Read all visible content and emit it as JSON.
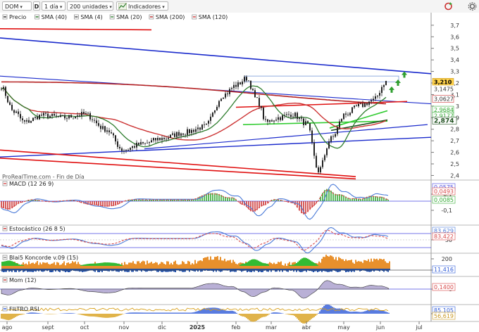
{
  "toolbar": {
    "ticker": "DOM",
    "timeframe": "1 día",
    "units": "200 unidades",
    "indicators": "Indicadores"
  },
  "legend_labels": [
    "Precio",
    "SMA (40)",
    "SMA (4)",
    "SMA (20)",
    "SMA (200)",
    "SMA (120)"
  ],
  "colors": {
    "price": "#222222",
    "sma40": "#1a6b1a",
    "sma4": "#333333",
    "sma20": "#2e7d2e",
    "sma200": "#b52222",
    "sma120": "#cc3333",
    "channel_blue": "#1a2acc",
    "red_line": "#e01010",
    "green_line": "#33cc33",
    "signal_arrow": "#2e9e2e",
    "bar_pos": "#33aa33",
    "bar_neg": "#cc3333"
  },
  "watermark": "ProRealTime.com - Fin de Día",
  "x_axis_labels": [
    "ago",
    "sept",
    "oct",
    "nov",
    "dic",
    "2025",
    "feb",
    "mar",
    "abr",
    "may",
    "jun",
    "jul"
  ],
  "chart_data": [
    {
      "type": "line",
      "title": "Precio",
      "yticks": [
        "3,7",
        "3,6",
        "3,5",
        "3,4",
        "3,3",
        "3,2",
        "3,1",
        "3",
        "2,9",
        "2,8",
        "2,7",
        "2,6",
        "2,5",
        "2,4"
      ],
      "ylim": [
        2.36,
        3.76
      ],
      "labels": [
        "3,210",
        "3,1475",
        "3,0627",
        "2,9684",
        "2,9177",
        "2,874"
      ],
      "series": [
        {
          "name": "Precio",
          "approx_points": [
            [
              "ago",
              3.18
            ],
            [
              "sept",
              2.9
            ],
            [
              "oct",
              2.92
            ],
            [
              "nov",
              2.6
            ],
            [
              "dic",
              2.72
            ],
            [
              "2025",
              2.79
            ],
            [
              "feb",
              3.25
            ],
            [
              "mar",
              2.89
            ],
            [
              "abr",
              2.44
            ],
            [
              "may",
              3.0
            ],
            [
              "jun",
              3.21
            ]
          ]
        }
      ]
    },
    {
      "type": "line",
      "title": "MACD (12 26 9)",
      "yticks": [
        "0,1",
        "0",
        "-0,1"
      ],
      "labels": [
        "0,0575",
        "0,0493",
        "0,0085"
      ]
    },
    {
      "type": "line",
      "title": "Estocástico (26 8 5)",
      "yticks": [
        "50"
      ],
      "labels": [
        "83,629",
        "83,422"
      ]
    },
    {
      "type": "bar",
      "title": "Blai5 Koncorde v.09 (15)",
      "yticks": [
        "200",
        "0"
      ],
      "labels": [
        "11,416"
      ]
    },
    {
      "type": "area",
      "title": "Mom (12)",
      "yticks": [
        "0"
      ],
      "labels": [
        "0,1400"
      ]
    },
    {
      "type": "line",
      "title": "FILTRO RSI",
      "yticks": [
        "50"
      ],
      "labels": [
        "85,105",
        "56,619"
      ]
    }
  ]
}
